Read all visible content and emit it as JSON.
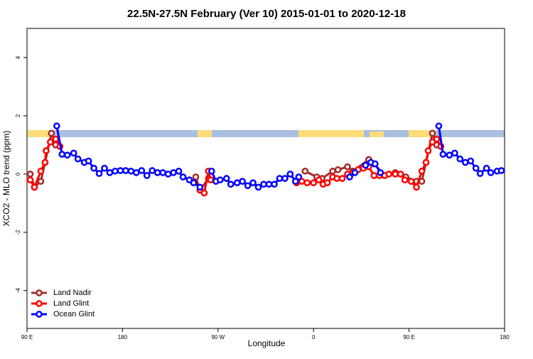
{
  "chart_data": {
    "type": "line",
    "title": "22.5N-27.5N February (Ver 10)   2015-01-01 to 2020-12-18",
    "xlabel": "Longitude",
    "ylabel": "XCO2 - MLO trend (ppm)",
    "xlim": [
      90,
      540
    ],
    "ylim": [
      -5.3,
      5
    ],
    "xticks": [
      {
        "value": 90,
        "label": "90 E"
      },
      180,
      {
        "value": 270,
        "label": "90 W"
      },
      {
        "value": 360,
        "label": "0"
      },
      {
        "value": 450,
        "label": "90 E"
      },
      {
        "value": 540,
        "label": "180"
      }
    ],
    "yticks": [
      -4,
      -2,
      0,
      2,
      4
    ],
    "legend": "bottom-left",
    "series": [
      {
        "name": "Land Nadir",
        "color": "#a52a2a",
        "x": [
          93,
          97,
          103,
          107,
          113,
          117,
          null,
          249,
          253,
          261,
          null,
          352,
          363,
          368,
          378,
          383,
          392,
          397,
          412,
          417,
          427,
          437,
          447,
          457,
          462,
          472,
          476
        ],
        "values": [
          0.0,
          -0.45,
          -0.25,
          0.4,
          1.4,
          1.0,
          null,
          -0.1,
          -0.55,
          -0.15,
          null,
          0.1,
          -0.1,
          -0.15,
          0.1,
          0.15,
          0.25,
          0.1,
          0.5,
          0.35,
          -0.05,
          0.05,
          -0.1,
          -0.25,
          -0.25,
          1.4,
          1.0
        ]
      },
      {
        "name": "Land Glint",
        "color": "#ff0000",
        "x": [
          93,
          97,
          103,
          107,
          108,
          112,
          117,
          121,
          null,
          253,
          257,
          261,
          263,
          null,
          344,
          349,
          354,
          360,
          365,
          369,
          373,
          378,
          382,
          387,
          392,
          397,
          402,
          407,
          412,
          417,
          422,
          427,
          431,
          437,
          442,
          446,
          452,
          457,
          462,
          466,
          468,
          472,
          476,
          480
        ],
        "values": [
          -0.2,
          -0.45,
          0.1,
          0.4,
          0.8,
          1.1,
          1.2,
          0.95,
          null,
          -0.55,
          -0.65,
          0.1,
          -0.2,
          null,
          -0.3,
          -0.25,
          -0.3,
          -0.3,
          -0.2,
          -0.35,
          -0.3,
          -0.1,
          -0.15,
          -0.15,
          0.0,
          0.05,
          0.15,
          0.2,
          0.25,
          -0.05,
          -0.05,
          -0.05,
          0.0,
          0.0,
          0.0,
          -0.2,
          -0.25,
          -0.45,
          0.1,
          0.4,
          0.8,
          1.1,
          1.2,
          0.95
        ]
      },
      {
        "name": "Ocean Glint",
        "color": "#0000ff",
        "x": [
          118,
          123,
          128,
          134,
          138,
          144,
          148,
          153,
          158,
          163,
          168,
          173,
          178,
          183,
          188,
          193,
          198,
          203,
          208,
          213,
          218,
          223,
          228,
          233,
          237,
          243,
          247,
          253,
          null,
          264,
          268,
          272,
          278,
          282,
          288,
          293,
          298,
          303,
          308,
          313,
          318,
          323,
          328,
          333,
          338,
          343,
          346,
          null,
          394,
          399,
          null,
          409,
          414,
          418,
          423,
          null,
          478,
          482,
          488,
          493,
          498,
          503,
          508,
          513,
          517,
          523,
          527,
          533,
          537
        ],
        "values": [
          1.65,
          0.68,
          0.65,
          0.72,
          0.52,
          0.4,
          0.45,
          0.2,
          0.02,
          0.2,
          0.05,
          0.1,
          0.12,
          0.12,
          0.1,
          0.05,
          0.12,
          -0.05,
          0.12,
          0.05,
          0.05,
          0.0,
          0.05,
          0.1,
          -0.1,
          -0.2,
          -0.3,
          -0.45,
          null,
          0.1,
          -0.25,
          -0.2,
          -0.15,
          -0.35,
          -0.3,
          -0.25,
          -0.4,
          -0.3,
          -0.45,
          -0.35,
          -0.35,
          -0.35,
          -0.15,
          -0.15,
          0.0,
          -0.25,
          -0.1,
          null,
          -0.1,
          0.05,
          null,
          0.3,
          0.4,
          0.35,
          0.05,
          null,
          1.65,
          0.68,
          0.65,
          0.72,
          0.52,
          0.4,
          0.45,
          0.2,
          0.02,
          0.2,
          0.05,
          0.1,
          0.12
        ]
      }
    ]
  }
}
